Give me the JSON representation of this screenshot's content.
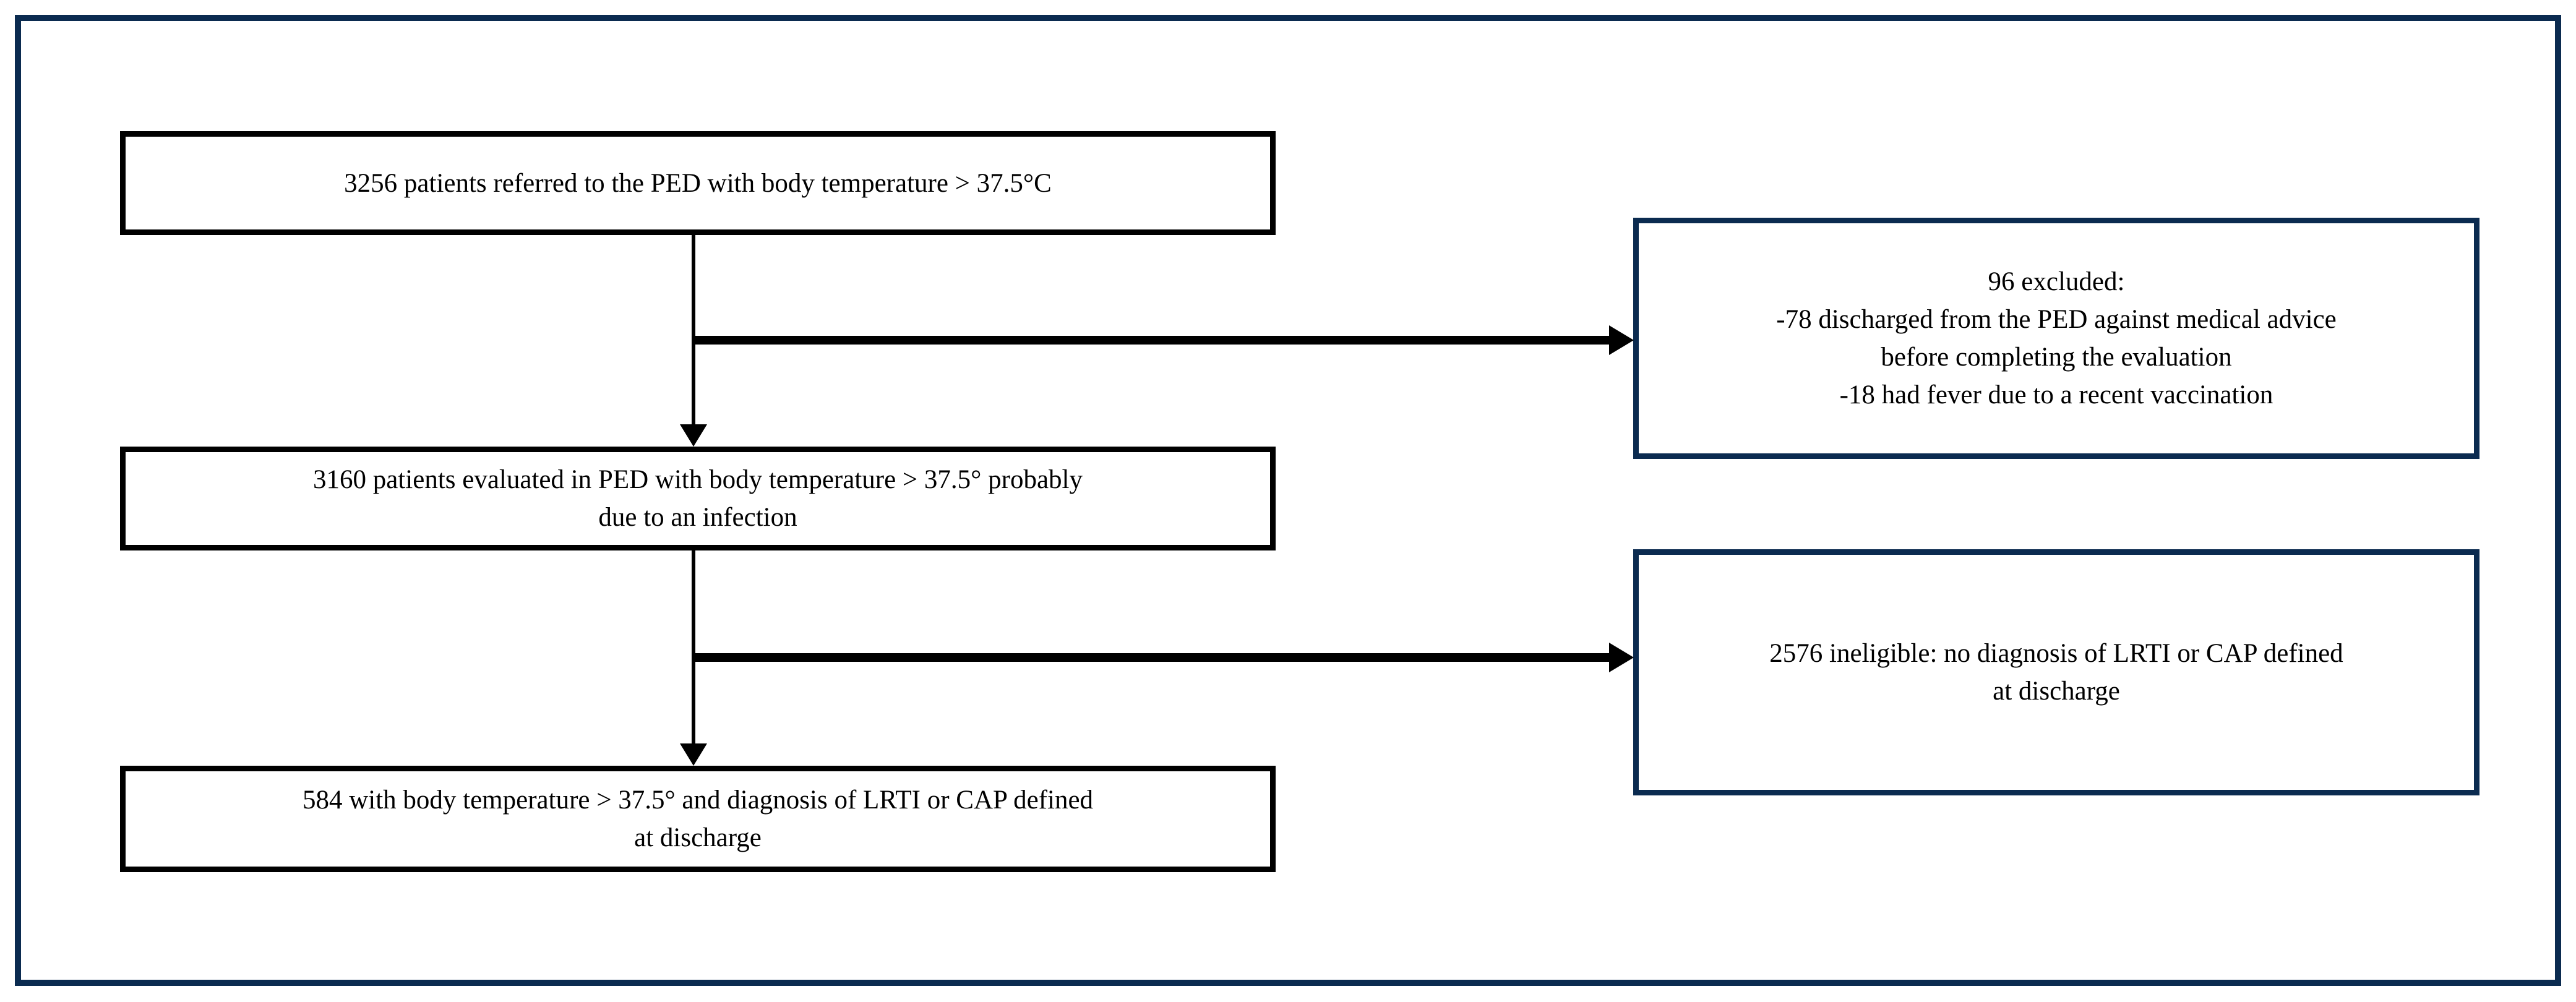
{
  "colors": {
    "navy": "#0b2b50",
    "black": "#000000",
    "background": "#ffffff"
  },
  "boxes": {
    "referred": {
      "lines": [
        "3256 patients referred to the PED with body temperature > 37.5°C"
      ]
    },
    "evaluated": {
      "lines": [
        "3160 patients evaluated in PED with body temperature > 37.5° probably",
        "due to an infection"
      ]
    },
    "final": {
      "lines": [
        "584 with body temperature > 37.5° and diagnosis of LRTI or CAP defined",
        "at discharge"
      ]
    },
    "excluded": {
      "lines": [
        "96 excluded:",
        "-78 discharged from the PED against medical advice",
        "before completing the evaluation",
        "-18 had fever due to a recent vaccination"
      ]
    },
    "ineligible": {
      "lines": [
        "2576 ineligible: no diagnosis of LRTI or CAP defined",
        "at discharge"
      ]
    }
  }
}
